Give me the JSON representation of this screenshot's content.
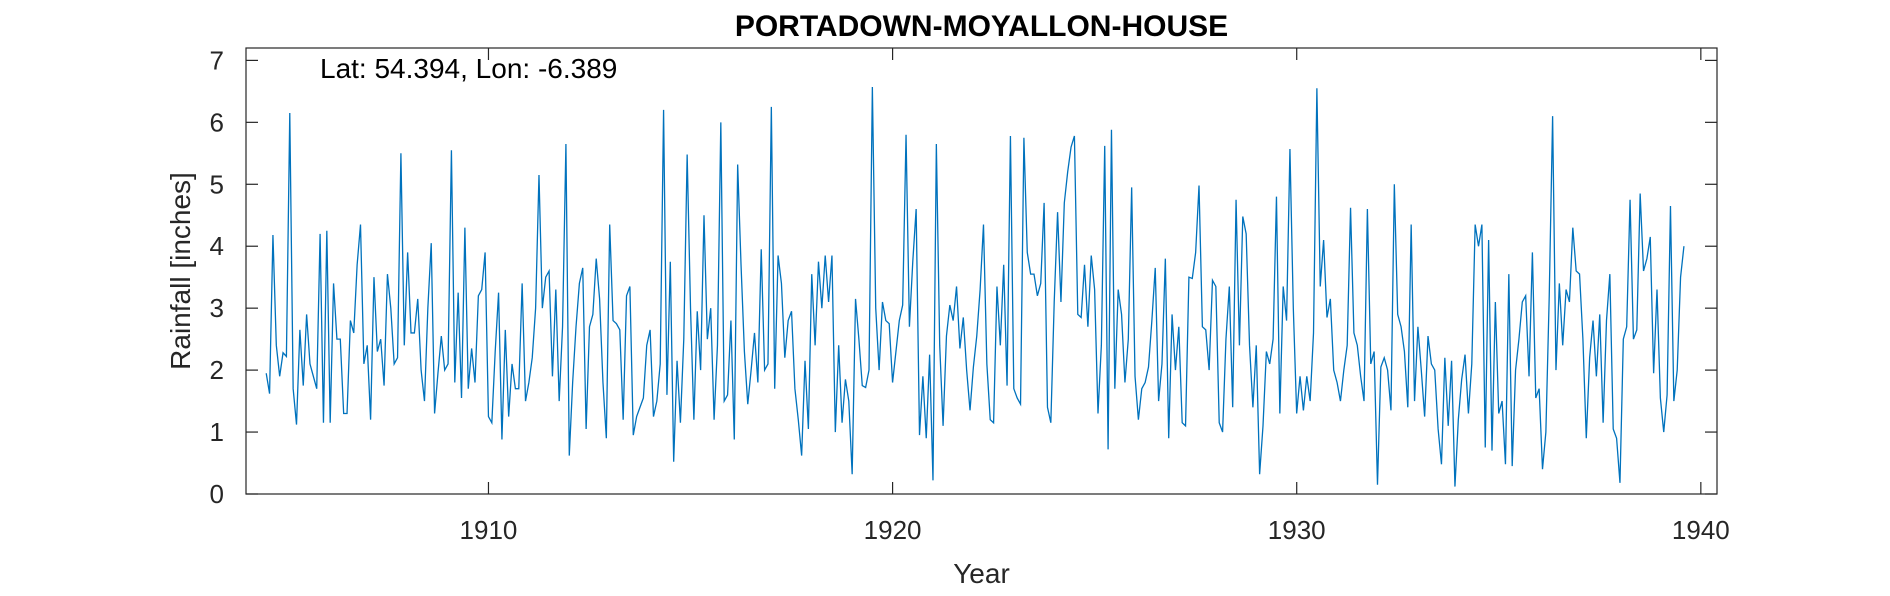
{
  "chart_data": {
    "type": "line",
    "title": "PORTADOWN-MOYALLON-HOUSE",
    "annotation": "Lat: 54.394, Lon: -6.389",
    "xlabel": "Year",
    "ylabel": "Rainfall [inches]",
    "xlim": [
      1904.0,
      1940.4
    ],
    "ylim": [
      0,
      7.2
    ],
    "xticks": [
      1910,
      1920,
      1930,
      1940
    ],
    "yticks": [
      0,
      1,
      2,
      3,
      4,
      5,
      6,
      7
    ],
    "grid": false,
    "line_color": "#0072BD",
    "series": [
      {
        "start_year": 1904.5,
        "step_years": 0.08333,
        "values": [
          1.95,
          1.62,
          4.18,
          2.4,
          1.9,
          2.28,
          2.22,
          6.15,
          1.7,
          1.12,
          2.65,
          1.75,
          2.9,
          2.1,
          1.9,
          1.7,
          4.2,
          1.15,
          4.25,
          1.15,
          3.4,
          2.5,
          2.5,
          1.3,
          1.3,
          2.8,
          2.6,
          3.7,
          4.35,
          2.1,
          2.4,
          1.2,
          3.5,
          2.3,
          2.5,
          1.75,
          3.55,
          3.0,
          2.1,
          2.2,
          5.5,
          2.4,
          3.9,
          2.6,
          2.6,
          3.15,
          2.0,
          1.5,
          3.0,
          4.05,
          1.3,
          1.95,
          2.55,
          2.0,
          2.1,
          5.55,
          1.8,
          3.25,
          1.55,
          4.3,
          1.7,
          2.35,
          1.8,
          3.2,
          3.3,
          3.9,
          1.25,
          1.15,
          2.3,
          3.25,
          0.88,
          2.65,
          1.25,
          2.1,
          1.7,
          1.7,
          3.4,
          1.5,
          1.8,
          2.2,
          3.0,
          5.15,
          3.0,
          3.5,
          3.6,
          1.9,
          3.3,
          1.5,
          2.7,
          5.65,
          0.62,
          1.8,
          2.7,
          3.4,
          3.65,
          1.05,
          2.7,
          2.9,
          3.8,
          3.15,
          1.8,
          0.9,
          4.35,
          2.8,
          2.75,
          2.65,
          1.2,
          3.2,
          3.35,
          0.95,
          1.25,
          1.4,
          1.55,
          2.4,
          2.65,
          1.25,
          1.5,
          2.1,
          6.2,
          1.6,
          3.75,
          0.52,
          2.15,
          1.15,
          2.5,
          5.48,
          3.0,
          1.2,
          2.95,
          2.0,
          4.5,
          2.5,
          3.0,
          1.2,
          2.4,
          6.0,
          1.5,
          1.6,
          2.8,
          0.88,
          5.32,
          3.7,
          2.3,
          1.45,
          2.0,
          2.6,
          1.8,
          3.95,
          2.0,
          2.1,
          6.25,
          1.7,
          3.85,
          3.4,
          2.2,
          2.8,
          2.95,
          1.7,
          1.2,
          0.62,
          2.15,
          1.05,
          3.55,
          2.4,
          3.75,
          3.0,
          3.85,
          3.1,
          3.85,
          1.0,
          2.4,
          1.15,
          1.85,
          1.5,
          0.32,
          3.15,
          2.5,
          1.75,
          1.72,
          2.0,
          6.57,
          3.0,
          2.0,
          3.1,
          2.8,
          2.75,
          1.8,
          2.3,
          2.8,
          3.05,
          5.8,
          2.7,
          3.75,
          4.6,
          0.95,
          1.9,
          0.9,
          2.25,
          0.22,
          5.65,
          2.4,
          1.1,
          2.55,
          3.05,
          2.8,
          3.35,
          2.35,
          2.85,
          2.0,
          1.35,
          2.05,
          2.55,
          3.3,
          4.35,
          2.1,
          1.2,
          1.15,
          3.35,
          2.4,
          3.7,
          1.75,
          5.78,
          1.7,
          1.55,
          1.45,
          5.75,
          3.9,
          3.55,
          3.55,
          3.2,
          3.4,
          4.7,
          1.4,
          1.15,
          3.1,
          4.55,
          3.1,
          4.7,
          5.2,
          5.6,
          5.78,
          2.9,
          2.85,
          3.7,
          2.7,
          3.85,
          3.3,
          1.3,
          2.4,
          5.62,
          0.72,
          5.88,
          1.7,
          3.3,
          2.9,
          1.8,
          2.5,
          4.95,
          1.9,
          1.2,
          1.7,
          1.8,
          2.05,
          2.8,
          3.65,
          1.5,
          2.1,
          3.8,
          0.9,
          2.9,
          2.0,
          2.7,
          1.15,
          1.1,
          3.5,
          3.48,
          3.9,
          4.98,
          2.7,
          2.65,
          2.0,
          3.45,
          3.35,
          1.15,
          1.0,
          2.5,
          3.35,
          1.4,
          4.75,
          2.4,
          4.48,
          4.2,
          2.4,
          1.4,
          2.4,
          0.32,
          1.1,
          2.3,
          2.1,
          2.5,
          4.8,
          1.3,
          3.35,
          2.8,
          5.57,
          3.0,
          1.3,
          1.9,
          1.35,
          1.9,
          1.5,
          2.6,
          6.55,
          3.35,
          4.1,
          2.85,
          3.15,
          2.0,
          1.8,
          1.5,
          2.0,
          2.4,
          4.62,
          2.6,
          2.4,
          1.9,
          1.5,
          4.6,
          2.1,
          2.3,
          0.15,
          2.05,
          2.2,
          2.0,
          1.35,
          5.0,
          2.9,
          2.7,
          2.3,
          1.4,
          4.35,
          1.5,
          2.7,
          2.0,
          1.25,
          2.55,
          2.1,
          2.0,
          1.05,
          0.48,
          2.2,
          1.1,
          2.15,
          0.12,
          1.2,
          1.85,
          2.25,
          1.3,
          2.1,
          4.35,
          4.0,
          4.35,
          0.75,
          4.1,
          0.7,
          3.1,
          1.3,
          1.5,
          0.48,
          3.55,
          0.45,
          2.0,
          2.5,
          3.1,
          3.2,
          1.9,
          3.9,
          1.55,
          1.7,
          0.4,
          1.0,
          3.2,
          6.1,
          2.0,
          3.4,
          2.4,
          3.3,
          3.1,
          4.3,
          3.6,
          3.55,
          2.5,
          0.9,
          2.2,
          2.8,
          1.9,
          2.9,
          1.15,
          2.8,
          3.55,
          1.05,
          0.9,
          0.18,
          2.5,
          2.7,
          4.75,
          2.5,
          2.65,
          4.85,
          3.6,
          3.8,
          4.15,
          1.95,
          3.3,
          1.55,
          1.0,
          1.6,
          4.65,
          1.5,
          2.0,
          3.5,
          4.0
        ]
      }
    ]
  }
}
